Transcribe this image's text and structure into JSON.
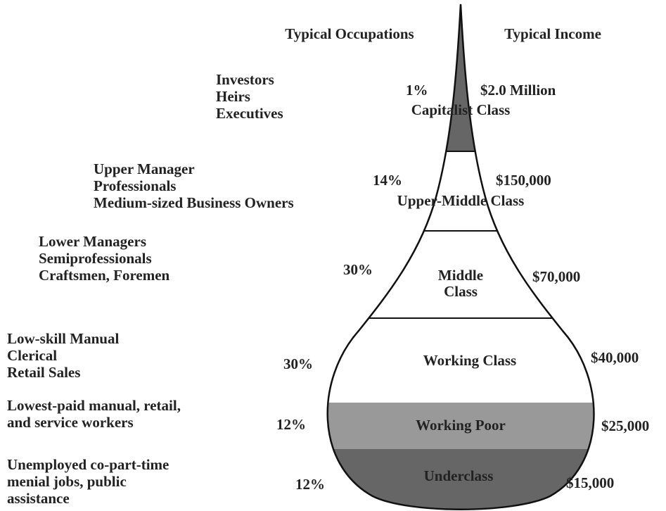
{
  "headers": {
    "occupations": "Typical Occupations",
    "income": "Typical Income"
  },
  "classes": [
    {
      "name": [
        "Capitalist Class"
      ],
      "percent": "1%",
      "income": "$2.0 Million",
      "occupations": [
        "Investors",
        "Heirs",
        "Executives"
      ]
    },
    {
      "name": [
        "Upper-Middle Class"
      ],
      "percent": "14%",
      "income": "$150,000",
      "occupations": [
        "Upper Manager",
        "Professionals",
        "Medium-sized Business Owners"
      ]
    },
    {
      "name": [
        "Middle",
        "Class"
      ],
      "percent": "30%",
      "income": "$70,000",
      "occupations": [
        "Lower Managers",
        "Semiprofessionals",
        "Craftsmen, Foremen"
      ]
    },
    {
      "name": [
        "Working Class"
      ],
      "percent": "30%",
      "income": "$40,000",
      "occupations": [
        "Low-skill Manual",
        "Clerical",
        "Retail Sales"
      ]
    },
    {
      "name": [
        "Working Poor"
      ],
      "percent": "12%",
      "income": "$25,000",
      "occupations": [
        "Lowest-paid manual, retail,",
        "and service workers"
      ]
    },
    {
      "name": [
        "Underclass"
      ],
      "percent": "12%",
      "income": "$15,000",
      "occupations": [
        "Unemployed co-part-time",
        "menial jobs, public",
        "assistance"
      ]
    }
  ]
}
